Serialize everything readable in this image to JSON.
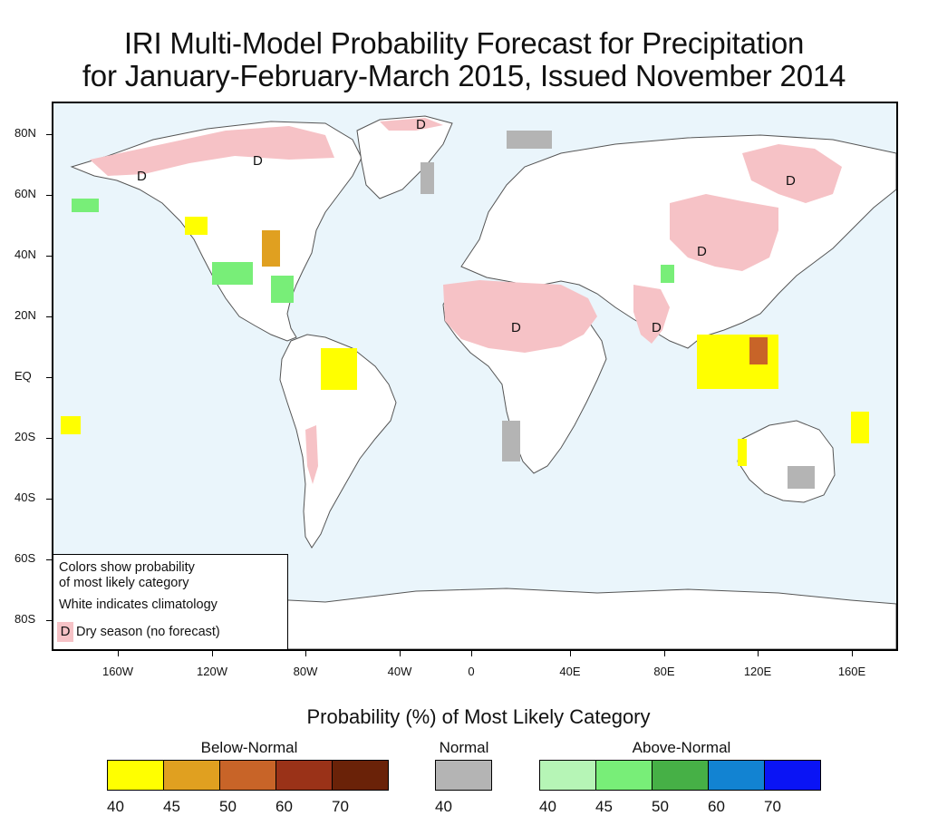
{
  "title": {
    "line1": "IRI Multi-Model Probability Forecast for Precipitation",
    "line2": "for January-February-March 2015, Issued November 2014"
  },
  "map": {
    "lat_labels": [
      "80N",
      "60N",
      "40N",
      "20N",
      "EQ",
      "20S",
      "40S",
      "60S",
      "80S"
    ],
    "lon_labels": [
      "160W",
      "120W",
      "80W",
      "40W",
      "0",
      "40E",
      "80E",
      "120E",
      "160E"
    ],
    "ocean_color": "#eaf5fb",
    "land_color": "#ffffff",
    "dry_marker": "D"
  },
  "inset_legend": {
    "line1": "Colors show probability",
    "line2": "of most likely category",
    "line3": "White indicates climatology",
    "dry_symbol": "D",
    "dry_text": "Dry season (no forecast)",
    "dry_color": "#f6c2c6"
  },
  "colorbar": {
    "title": "Probability (%) of Most Likely Category",
    "below": {
      "label": "Below-Normal",
      "colors": [
        "#ffff00",
        "#e0a020",
        "#c86428",
        "#9a3218",
        "#6a2208"
      ],
      "ticks": [
        "40",
        "45",
        "50",
        "60",
        "70"
      ]
    },
    "normal": {
      "label": "Normal",
      "colors": [
        "#b4b4b4"
      ],
      "ticks": [
        "40"
      ]
    },
    "above": {
      "label": "Above-Normal",
      "colors": [
        "#b6f5b6",
        "#78ee78",
        "#46b046",
        "#1283d2",
        "#0a14f5"
      ],
      "ticks": [
        "40",
        "45",
        "50",
        "60",
        "70"
      ]
    }
  }
}
